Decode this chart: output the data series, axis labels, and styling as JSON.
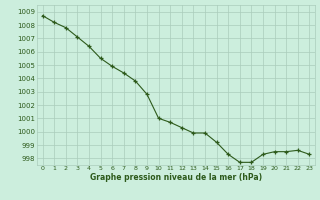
{
  "x": [
    0,
    1,
    2,
    3,
    4,
    5,
    6,
    7,
    8,
    9,
    10,
    11,
    12,
    13,
    14,
    15,
    16,
    17,
    18,
    19,
    20,
    21,
    22,
    23
  ],
  "y": [
    1008.7,
    1008.2,
    1007.8,
    1007.1,
    1006.4,
    1005.5,
    1004.9,
    1004.4,
    1003.8,
    1002.8,
    1001.0,
    1000.7,
    1000.3,
    999.9,
    999.9,
    999.2,
    998.3,
    997.7,
    997.7,
    998.3,
    998.5,
    998.5,
    998.6,
    998.3
  ],
  "line_color": "#2d5a1b",
  "marker_color": "#2d5a1b",
  "bg_color": "#cceedd",
  "grid_color": "#aaccbb",
  "xlabel": "Graphe pression niveau de la mer (hPa)",
  "xlabel_color": "#2d5a1b",
  "tick_color": "#2d5a1b",
  "ylim": [
    997.5,
    1009.5
  ],
  "yticks": [
    998,
    999,
    1000,
    1001,
    1002,
    1003,
    1004,
    1005,
    1006,
    1007,
    1008,
    1009
  ],
  "xticks": [
    0,
    1,
    2,
    3,
    4,
    5,
    6,
    7,
    8,
    9,
    10,
    11,
    12,
    13,
    14,
    15,
    16,
    17,
    18,
    19,
    20,
    21,
    22,
    23
  ],
  "figsize": [
    3.2,
    2.0
  ],
  "dpi": 100
}
